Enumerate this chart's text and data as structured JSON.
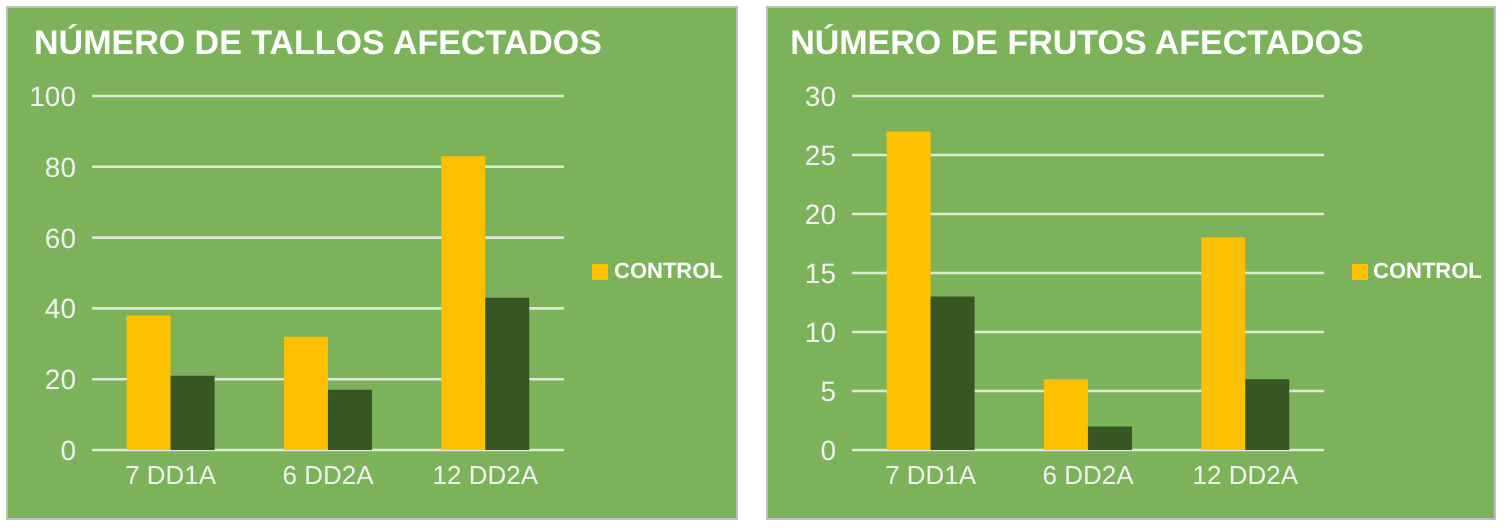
{
  "chart_data": [
    {
      "type": "bar",
      "title": "NÚMERO DE TALLOS AFECTADOS",
      "categories": [
        "7 DD1A",
        "6 DD2A",
        "12 DD2A"
      ],
      "series": [
        {
          "name": "CONTROL",
          "color": "#ffc000",
          "values": [
            38,
            32,
            83
          ]
        },
        {
          "color": "#375623",
          "values": [
            21,
            17,
            43
          ]
        }
      ],
      "ylim": [
        0,
        100
      ],
      "yticks": [
        0,
        20,
        40,
        60,
        80,
        100
      ],
      "grid": "y",
      "legend": "right"
    },
    {
      "type": "bar",
      "title": "NÚMERO DE FRUTOS AFECTADOS",
      "categories": [
        "7 DD1A",
        "6 DD2A",
        "12 DD2A"
      ],
      "series": [
        {
          "name": "CONTROL",
          "color": "#ffc000",
          "values": [
            27,
            6,
            18
          ]
        },
        {
          "color": "#375623",
          "values": [
            13,
            2,
            6
          ]
        }
      ],
      "ylim": [
        0,
        30
      ],
      "yticks": [
        0,
        5,
        10,
        15,
        20,
        25,
        30
      ],
      "grid": "y",
      "legend": "right"
    }
  ]
}
